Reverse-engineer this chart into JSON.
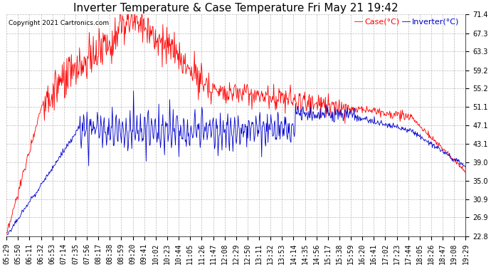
{
  "title": "Inverter Temperature & Case Temperature Fri May 21 19:42",
  "copyright": "Copyright 2021 Cartronics.com",
  "legend_case": "Case(°C)",
  "legend_inverter": "Inverter(°C)",
  "case_color": "#ff0000",
  "inverter_color": "#0000cc",
  "background_color": "#ffffff",
  "grid_color": "#aaaaaa",
  "yticks": [
    22.8,
    26.9,
    30.9,
    35.0,
    39.0,
    43.1,
    47.1,
    51.1,
    55.2,
    59.2,
    63.3,
    67.3,
    71.4
  ],
  "ymin": 22.8,
  "ymax": 71.4,
  "title_fontsize": 11,
  "legend_fontsize": 8,
  "tick_fontsize": 7,
  "copyright_fontsize": 6.5,
  "xtick_labels": [
    "05:29",
    "05:50",
    "06:11",
    "06:32",
    "06:53",
    "07:14",
    "07:35",
    "07:56",
    "08:17",
    "08:38",
    "08:59",
    "09:20",
    "09:41",
    "10:02",
    "10:23",
    "10:44",
    "11:05",
    "11:26",
    "11:47",
    "12:08",
    "12:29",
    "12:50",
    "13:11",
    "13:32",
    "13:53",
    "14:14",
    "14:35",
    "14:56",
    "15:17",
    "15:38",
    "15:59",
    "16:20",
    "16:41",
    "17:02",
    "17:23",
    "17:44",
    "18:05",
    "18:26",
    "18:47",
    "19:08",
    "19:29"
  ]
}
